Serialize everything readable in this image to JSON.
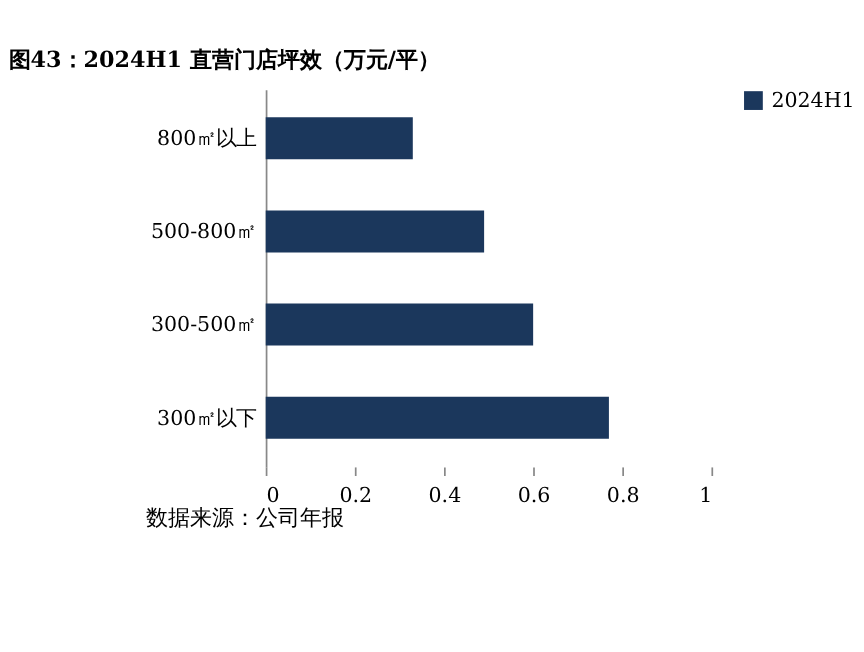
{
  "chart_data": {
    "type": "bar",
    "orientation": "horizontal",
    "title": "图43：2024H1 直营门店坪效（万元/平）",
    "categories": [
      "800㎡以上",
      "500-800㎡",
      "300-500㎡",
      "300㎡以下"
    ],
    "series": [
      {
        "name": "2024H1",
        "color": "#1b375c",
        "values": [
          0.33,
          0.49,
          0.6,
          0.77
        ]
      }
    ],
    "xlim": [
      0,
      1
    ],
    "xticks": [
      0,
      0.2,
      0.4,
      0.6,
      0.8,
      1
    ],
    "grid": false,
    "legend": "right",
    "annotations": [
      "数据来源：公司年报"
    ]
  }
}
